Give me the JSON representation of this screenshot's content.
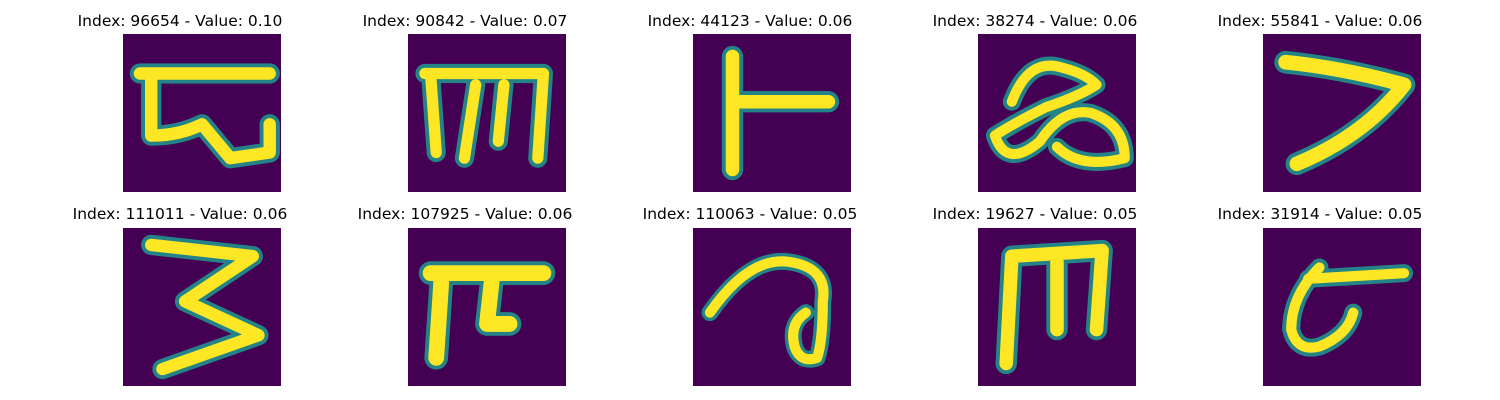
{
  "figure": {
    "background_color": "#ffffff",
    "colormap": {
      "name": "viridis",
      "low": "#440154",
      "mid_low": "#31688e",
      "mid": "#21918c",
      "mid_high": "#5ec962",
      "high": "#fde725"
    },
    "panels": [
      {
        "title": "Index: 96654 - Value: 0.10"
      },
      {
        "title": "Index: 90842 - Value: 0.07"
      },
      {
        "title": "Index: 44123 - Value: 0.06"
      },
      {
        "title": "Index: 38274 - Value: 0.06"
      },
      {
        "title": "Index: 55841 - Value: 0.06"
      },
      {
        "title": "Index: 111011 - Value: 0.06"
      },
      {
        "title": "Index: 107925 - Value: 0.06"
      },
      {
        "title": "Index: 110063 - Value: 0.05"
      },
      {
        "title": "Index: 19627 - Value: 0.05"
      },
      {
        "title": "Index: 31914 - Value: 0.05"
      }
    ]
  }
}
